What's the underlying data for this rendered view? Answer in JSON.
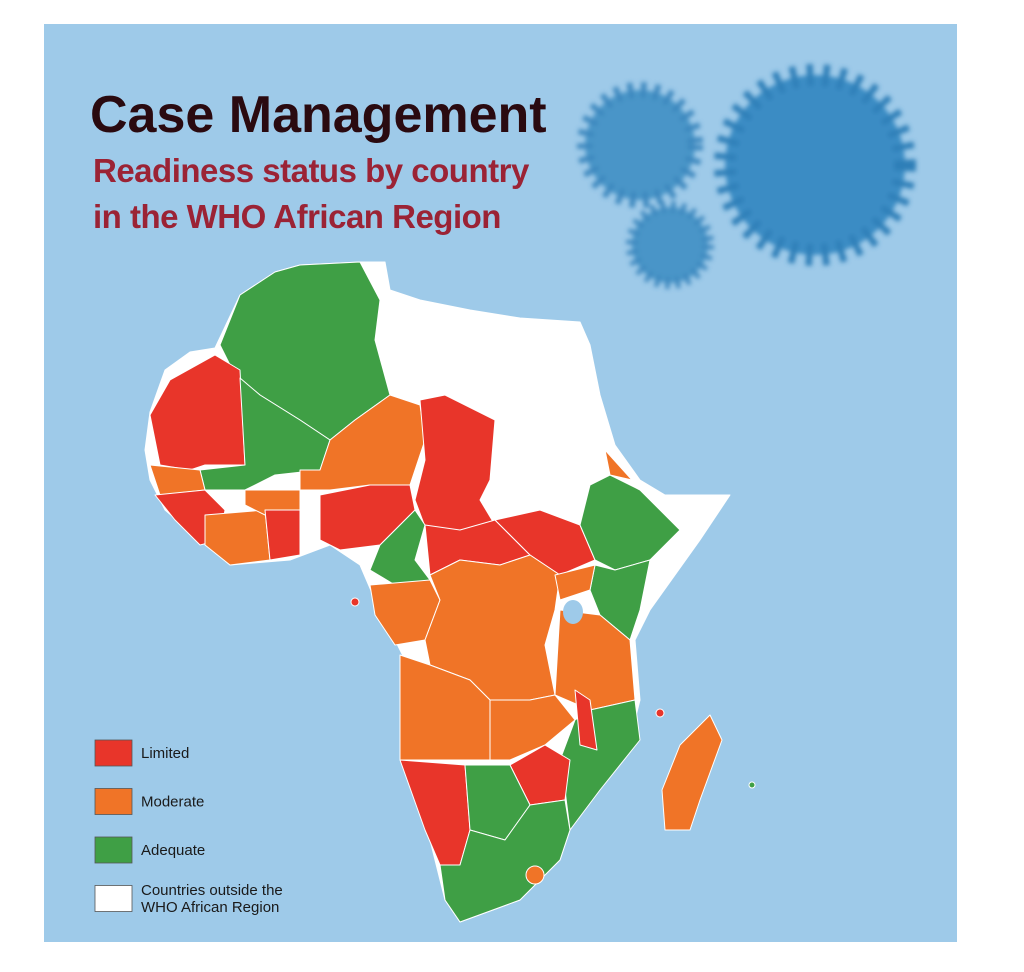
{
  "header": {
    "title": "Case Management",
    "subtitle": [
      "Readiness status by country",
      "in the WHO African Region"
    ]
  },
  "legend": [
    {
      "label": [
        "Limited"
      ],
      "color": "#e8352a"
    },
    {
      "label": [
        "Moderate"
      ],
      "color": "#f07427"
    },
    {
      "label": [
        "Adequate"
      ],
      "color": "#3f9f45"
    },
    {
      "label": [
        "Countries outside the",
        "WHO African Region"
      ],
      "color": "#ffffff"
    }
  ]
}
